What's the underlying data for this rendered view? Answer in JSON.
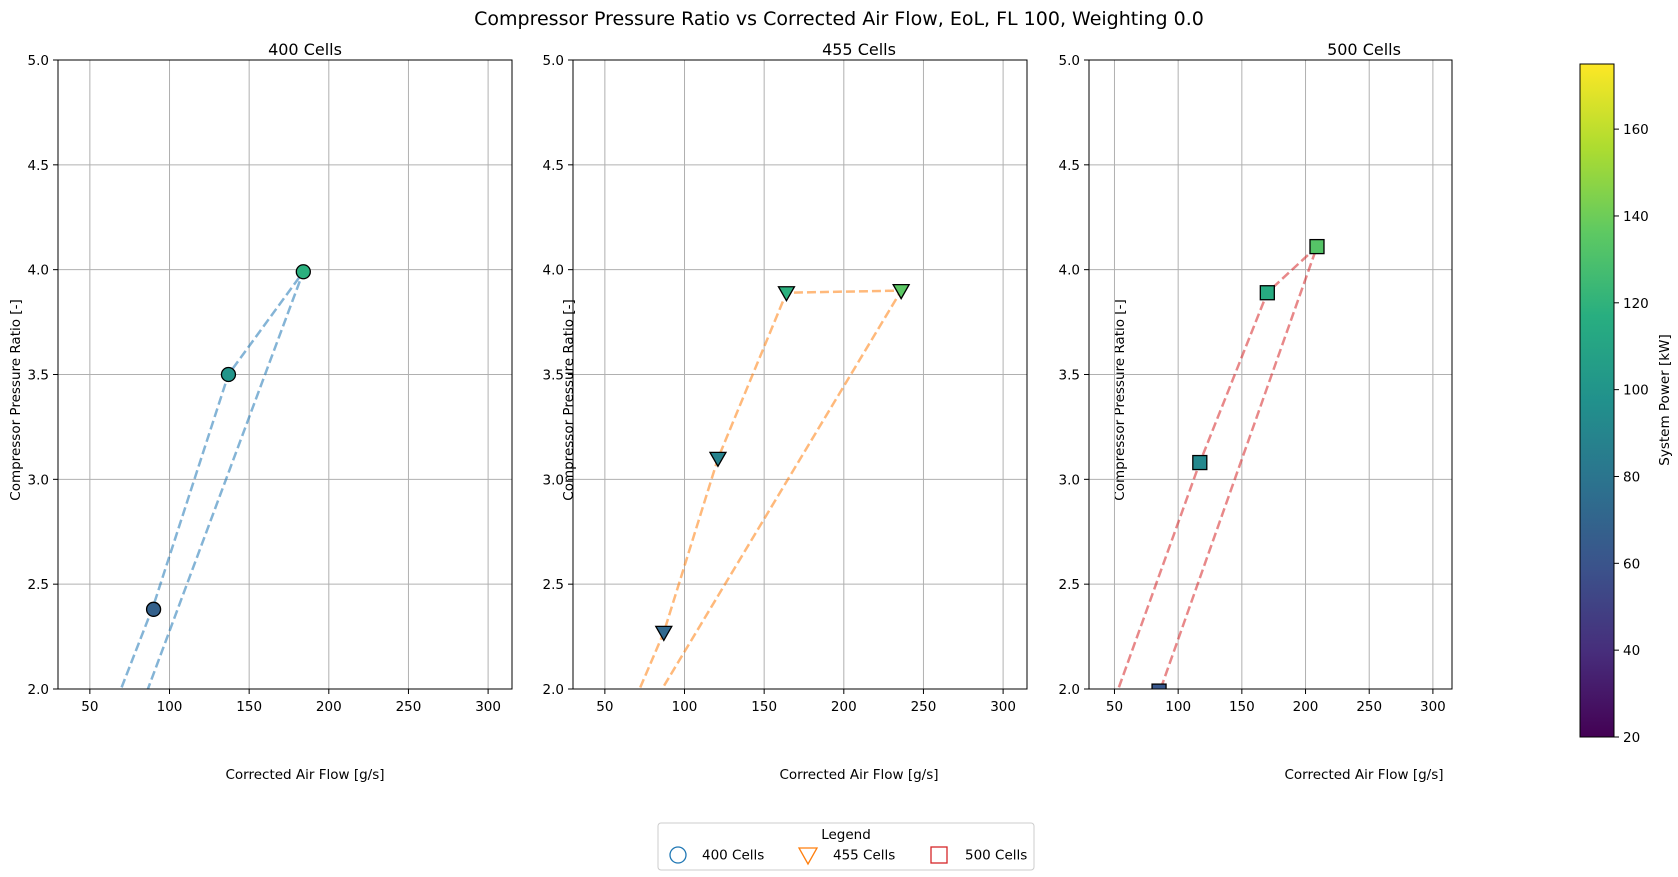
{
  "figure": {
    "title": "Compressor Pressure Ratio vs Corrected Air Flow, EoL, FL 100, Weighting 0.0"
  },
  "colorbar": {
    "label": "System Power [kW]",
    "min": 20,
    "max": 175,
    "ticks": [
      "20",
      "40",
      "60",
      "80",
      "100",
      "120",
      "140",
      "160"
    ],
    "tick_values": [
      20,
      40,
      60,
      80,
      100,
      120,
      140,
      160
    ],
    "colormap": "viridis"
  },
  "legend": {
    "title": "Legend",
    "placement": "bottom-center",
    "entries": [
      {
        "label": "400 Cells",
        "marker": "circle",
        "color": "#1f77b4"
      },
      {
        "label": "455 Cells",
        "marker": "triangle-down",
        "color": "#ff7f0e"
      },
      {
        "label": "500 Cells",
        "marker": "square",
        "color": "#d62728"
      }
    ]
  },
  "chart_data": [
    {
      "type": "scatter",
      "title": "400 Cells",
      "xlabel": "Corrected Air Flow [g/s]",
      "ylabel": "Compressor Pressure Ratio [-]",
      "xlim": [
        30,
        315
      ],
      "ylim": [
        2.0,
        5.0
      ],
      "xticks": [
        "50",
        "100",
        "150",
        "200",
        "250",
        "300"
      ],
      "yticks": [
        "2.0",
        "2.5",
        "3.0",
        "3.5",
        "4.0",
        "4.5",
        "5.0"
      ],
      "grid": true,
      "marker": "circle",
      "line_color": "#1f77b4",
      "line_path": [
        [
          67,
          1.95
        ],
        [
          90,
          2.4
        ],
        [
          137,
          3.5
        ],
        [
          184,
          3.99
        ],
        [
          84,
          1.95
        ]
      ],
      "points": [
        {
          "x": 90,
          "y": 2.38,
          "power": 68
        },
        {
          "x": 137,
          "y": 3.5,
          "power": 100
        },
        {
          "x": 184,
          "y": 3.99,
          "power": 118
        }
      ]
    },
    {
      "type": "scatter",
      "title": "455 Cells",
      "xlabel": "Corrected Air Flow [g/s]",
      "ylabel": "Compressor Pressure Ratio [-]",
      "xlim": [
        30,
        315
      ],
      "ylim": [
        2.0,
        5.0
      ],
      "xticks": [
        "50",
        "100",
        "150",
        "200",
        "250",
        "300"
      ],
      "yticks": [
        "2.0",
        "2.5",
        "3.0",
        "3.5",
        "4.0",
        "4.5",
        "5.0"
      ],
      "grid": true,
      "marker": "triangle-down",
      "line_color": "#ff7f0e",
      "line_path": [
        [
          69,
          1.95
        ],
        [
          87,
          2.27
        ],
        [
          121,
          3.1
        ],
        [
          164,
          3.89
        ],
        [
          236,
          3.9
        ],
        [
          82,
          1.95
        ]
      ],
      "points": [
        {
          "x": 87,
          "y": 2.27,
          "power": 72
        },
        {
          "x": 121,
          "y": 3.1,
          "power": 88
        },
        {
          "x": 164,
          "y": 3.89,
          "power": 118
        },
        {
          "x": 236,
          "y": 3.9,
          "power": 135
        }
      ]
    },
    {
      "type": "scatter",
      "title": "500 Cells",
      "xlabel": "Corrected Air Flow [g/s]",
      "ylabel": "Compressor Pressure Ratio [-]",
      "xlim": [
        30,
        315
      ],
      "ylim": [
        2.0,
        5.0
      ],
      "xticks": [
        "50",
        "100",
        "150",
        "200",
        "250",
        "300"
      ],
      "yticks": [
        "2.0",
        "2.5",
        "3.0",
        "3.5",
        "4.0",
        "4.5",
        "5.0"
      ],
      "grid": true,
      "marker": "square",
      "line_color": "#d62728",
      "line_path": [
        [
          50,
          1.95
        ],
        [
          117,
          3.08
        ],
        [
          170,
          3.89
        ],
        [
          209,
          4.11
        ],
        [
          85,
          1.98
        ]
      ],
      "points": [
        {
          "x": 85,
          "y": 1.99,
          "power": 62
        },
        {
          "x": 117,
          "y": 3.08,
          "power": 92
        },
        {
          "x": 170,
          "y": 3.89,
          "power": 115
        },
        {
          "x": 209,
          "y": 4.11,
          "power": 133
        }
      ]
    }
  ]
}
